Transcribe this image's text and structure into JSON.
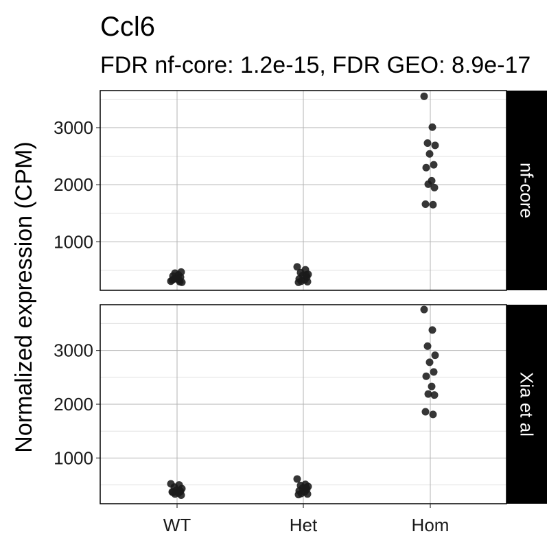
{
  "title": "Ccl6",
  "subtitle": "FDR nf-core: 1.2e-15, FDR GEO: 8.9e-17",
  "ylabel": "Normalized expression (CPM)",
  "xlabel": "",
  "colors": {
    "point": "#1a1a1a",
    "strip_bg": "#000000",
    "strip_text": "#ffffff",
    "grid_major": "#b3b3b3",
    "grid_minor": "#e0e0e0"
  },
  "chart_data": {
    "type": "scatter",
    "categories": [
      "WT",
      "Het",
      "Hom"
    ],
    "x_ticks": [
      "WT",
      "Het",
      "Hom"
    ],
    "grid": true,
    "panels": [
      {
        "strip_label": "nf-core",
        "ylim": [
          150,
          3650
        ],
        "y_ticks": [
          1000,
          2000,
          3000
        ],
        "series": [
          {
            "category": "WT",
            "values": [
              310,
              330,
              350,
              290,
              360,
              380,
              400,
              420,
              450,
              470,
              330,
              300,
              350
            ]
          },
          {
            "category": "Het",
            "values": [
              560,
              510,
              460,
              430,
              410,
              380,
              350,
              330,
              310,
              300,
              290,
              420
            ]
          },
          {
            "category": "Hom",
            "values": [
              3550,
              3010,
              2730,
              2690,
              2540,
              2350,
              2300,
              2070,
              2010,
              1950,
              1660,
              1650
            ]
          }
        ]
      },
      {
        "strip_label": "Xia et al",
        "ylim": [
          150,
          3850
        ],
        "y_ticks": [
          1000,
          2000,
          3000
        ],
        "series": [
          {
            "category": "WT",
            "values": [
              520,
              500,
              460,
              430,
              400,
              380,
              360,
              350,
              330,
              310,
              370,
              390
            ]
          },
          {
            "category": "Het",
            "values": [
              610,
              510,
              490,
              470,
              440,
              420,
              390,
              370,
              340,
              330,
              320,
              450
            ]
          },
          {
            "category": "Hom",
            "values": [
              3760,
              3380,
              3080,
              2910,
              2780,
              2600,
              2520,
              2330,
              2190,
              2170,
              1860,
              1810
            ]
          }
        ]
      }
    ]
  }
}
